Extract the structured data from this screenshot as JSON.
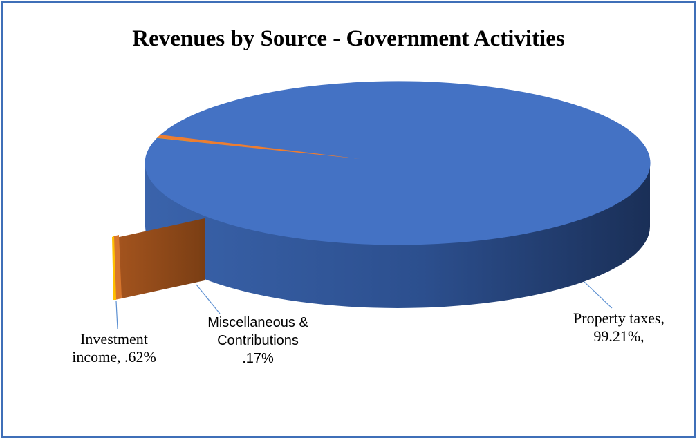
{
  "chart_data": {
    "type": "pie",
    "title": "Revenues by Source - Government Activities",
    "style": "3d",
    "slices": [
      {
        "name": "Property taxes",
        "value": 99.21,
        "label_value": "99.21%,",
        "color": "#4472c4"
      },
      {
        "name": "Investment income",
        "value": 0.62,
        "label_value": ".62%",
        "color": "#ed7d31"
      },
      {
        "name": "Miscellaneous & Contributions",
        "value": 0.17,
        "label_value": ".17%",
        "color": "#ffc000"
      }
    ],
    "labels": {
      "property": {
        "line1": "Property taxes,",
        "line2": "99.21%,"
      },
      "investment": {
        "line1": "Investment",
        "line2": "income,  .62%"
      },
      "misc": {
        "line1": "Miscellaneous &",
        "line2": "Contributions",
        "line3": ".17%"
      }
    },
    "legend": "none"
  }
}
